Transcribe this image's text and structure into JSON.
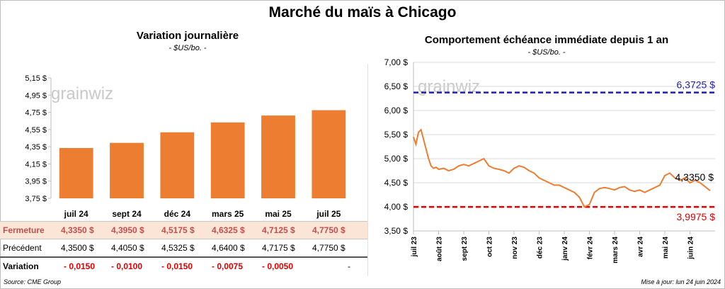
{
  "title": "Marché du maïs à Chicago",
  "left_panel": {
    "title": "Variation journalière",
    "unit": "- $US/bo. -"
  },
  "right_panel": {
    "title": "Comportement échéance immédiate depuis 1 an",
    "unit": "- $US/bo. -"
  },
  "watermark": "grainwiz",
  "table": {
    "rows": [
      {
        "label": "Fermeture",
        "values": [
          "4,3350 $",
          "4,3950 $",
          "4,5175 $",
          "4,6325 $",
          "4,7125 $",
          "4,7750 $"
        ]
      },
      {
        "label": "Précédent",
        "values": [
          "4,3500 $",
          "4,4050 $",
          "4,5325 $",
          "4,6400 $",
          "4,7175 $",
          "4,7750 $"
        ]
      },
      {
        "label": "Variation",
        "values": [
          "- 0,0150",
          "- 0,0100",
          "- 0,0150",
          "- 0,0075",
          "- 0,0050",
          "-"
        ]
      }
    ]
  },
  "footer": {
    "source": "Source: CME Group",
    "updated": "Mise à jour: lun 24 juin 2024"
  },
  "colors": {
    "bar": "#ed7d31",
    "line": "#ed7d31",
    "high_line": "#1f1fb4",
    "low_line": "#e00000",
    "high_label": "#1f1fb4",
    "low_label": "#e00000"
  },
  "chart_data": [
    {
      "type": "bar",
      "title": "Variation journalière",
      "categories": [
        "juil 24",
        "sept 24",
        "déc 24",
        "mars 25",
        "mai 25",
        "juil 25"
      ],
      "values": [
        4.335,
        4.395,
        4.5175,
        4.6325,
        4.7125,
        4.775
      ],
      "ylim": [
        3.75,
        5.15
      ],
      "yticks": [
        "3,75 $",
        "3,95 $",
        "4,15 $",
        "4,35 $",
        "4,55 $",
        "4,75 $",
        "4,95 $",
        "5,15 $"
      ],
      "grid": false
    },
    {
      "type": "line",
      "title": "Comportement échéance immédiate depuis 1 an",
      "ylim": [
        3.5,
        7.0
      ],
      "yticks": [
        "3,50 $",
        "4,00 $",
        "4,50 $",
        "5,00 $",
        "5,50 $",
        "6,00 $",
        "6,50 $",
        "7,00 $"
      ],
      "xticks": [
        "juil 23",
        "août 23",
        "sept 23",
        "oct 23",
        "nov 23",
        "déc 23",
        "janv 24",
        "févr 24",
        "mars 24",
        "avr 24",
        "mai 24",
        "juin 24"
      ],
      "grid": true,
      "series": [
        {
          "x": [
            0,
            0.1,
            0.2,
            0.3,
            0.4,
            0.5,
            0.6,
            0.7,
            0.8,
            0.9,
            1.0,
            1.2,
            1.4,
            1.6,
            1.8,
            2.0,
            2.2,
            2.4,
            2.6,
            2.8,
            3.0,
            3.2,
            3.4,
            3.6,
            3.8,
            4.0,
            4.2,
            4.4,
            4.6,
            4.8,
            5.0,
            5.2,
            5.4,
            5.6,
            5.8,
            6.0,
            6.2,
            6.4,
            6.6,
            6.8,
            7.0,
            7.2,
            7.4,
            7.6,
            7.8,
            8.0,
            8.2,
            8.4,
            8.6,
            8.8,
            9.0,
            9.2,
            9.4,
            9.6,
            9.8,
            10.0,
            10.2,
            10.4,
            10.6,
            10.8,
            11.0,
            11.2,
            11.4,
            11.6,
            11.8
          ],
          "values": [
            5.45,
            5.3,
            5.55,
            5.6,
            5.4,
            5.2,
            5.0,
            4.85,
            4.8,
            4.82,
            4.78,
            4.8,
            4.75,
            4.78,
            4.85,
            4.88,
            4.85,
            4.9,
            4.95,
            5.0,
            4.85,
            4.8,
            4.78,
            4.75,
            4.7,
            4.8,
            4.85,
            4.82,
            4.75,
            4.7,
            4.6,
            4.55,
            4.5,
            4.45,
            4.45,
            4.4,
            4.35,
            4.3,
            4.2,
            4.0,
            4.05,
            4.3,
            4.38,
            4.4,
            4.38,
            4.35,
            4.4,
            4.42,
            4.35,
            4.32,
            4.35,
            4.3,
            4.35,
            4.4,
            4.45,
            4.65,
            4.7,
            4.6,
            4.55,
            4.6,
            4.5,
            4.55,
            4.5,
            4.42,
            4.335
          ]
        }
      ],
      "reference_lines": [
        {
          "value": 6.3725,
          "label": "6,3725 $"
        },
        {
          "value": 3.9975,
          "label": "3,9975 $"
        }
      ],
      "last_value_label": "4,3350 $"
    }
  ]
}
